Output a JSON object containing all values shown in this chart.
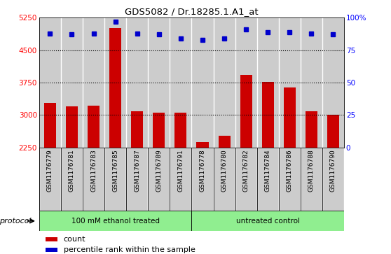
{
  "title": "GDS5082 / Dr.18285.1.A1_at",
  "samples": [
    "GSM1176779",
    "GSM1176781",
    "GSM1176783",
    "GSM1176785",
    "GSM1176787",
    "GSM1176789",
    "GSM1176791",
    "GSM1176778",
    "GSM1176780",
    "GSM1176782",
    "GSM1176784",
    "GSM1176786",
    "GSM1176788",
    "GSM1176790"
  ],
  "counts": [
    3280,
    3200,
    3220,
    5020,
    3080,
    3050,
    3050,
    2380,
    2520,
    3920,
    3760,
    3640,
    3080,
    3010
  ],
  "percentiles": [
    88,
    87,
    88,
    97,
    88,
    87,
    84,
    83,
    84,
    91,
    89,
    89,
    88,
    87
  ],
  "group1_count": 7,
  "group2_count": 7,
  "group_label": "protocol",
  "group1_label": "100 mM ethanol treated",
  "group2_label": "untreated control",
  "group_color": "#90EE90",
  "bar_color": "#CC0000",
  "dot_color": "#0000CC",
  "col_bg_color": "#CCCCCC",
  "ylim_left": [
    2250,
    5250
  ],
  "ylim_right": [
    0,
    100
  ],
  "yticks_left": [
    2250,
    3000,
    3750,
    4500,
    5250
  ],
  "yticks_right": [
    0,
    25,
    50,
    75,
    100
  ],
  "ytick_right_labels": [
    "0",
    "25",
    "50",
    "75",
    "100%"
  ],
  "grid_lines": [
    3000,
    3750,
    4500
  ],
  "bar_bottom": 2250,
  "legend_count_label": "count",
  "legend_pct_label": "percentile rank within the sample"
}
